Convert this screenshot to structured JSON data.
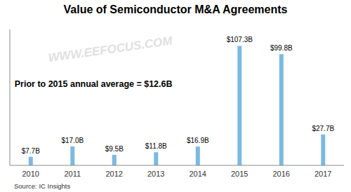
{
  "chart_data": {
    "type": "bar",
    "title": "Value of Semiconductor M&A Agreements",
    "categories": [
      "2010",
      "2011",
      "2012",
      "2013",
      "2014",
      "2015",
      "2016",
      "2017"
    ],
    "values": [
      7.7,
      17.0,
      9.5,
      11.8,
      16.9,
      107.3,
      99.8,
      27.7
    ],
    "value_labels": [
      "$7.7B",
      "$17.0B",
      "$9.5B",
      "$11.8B",
      "$16.9B",
      "$107.3B",
      "$99.8B",
      "$27.7B"
    ],
    "data_labels": true,
    "color": "#7cb9e0",
    "ylim": [
      0,
      122
    ],
    "tick_labels": "x",
    "grid": false,
    "annotations": [
      "Prior to 2015 annual average = $12.6B",
      "Source: IC Insights",
      "WWW.EEFOCUS.COM"
    ]
  }
}
